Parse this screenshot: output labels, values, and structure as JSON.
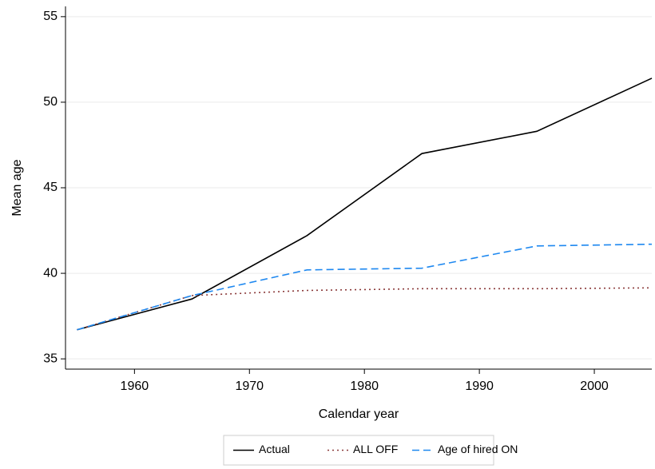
{
  "chart_data": {
    "type": "line",
    "x_label": "Calendar year",
    "y_label": "Mean age",
    "x": [
      1955,
      1965,
      1975,
      1985,
      1995,
      2005
    ],
    "series": [
      {
        "name": "Actual",
        "color": "#000000",
        "dash": "solid",
        "values": [
          36.7,
          38.5,
          42.2,
          47.0,
          48.3,
          51.4
        ]
      },
      {
        "name": "ALL OFF",
        "color": "#8b3a3a",
        "dash": "dotted",
        "values": [
          36.7,
          38.7,
          39.0,
          39.1,
          39.1,
          39.15
        ]
      },
      {
        "name": "Age of hired ON",
        "color": "#1e88f0",
        "dash": "dashed",
        "values": [
          36.7,
          38.7,
          40.2,
          40.3,
          41.6,
          41.7
        ]
      }
    ],
    "xlim": [
      1954,
      2005
    ],
    "xticks": [
      1960,
      1970,
      1980,
      1990,
      2000
    ],
    "ylim": [
      34.4,
      55.6
    ],
    "yticks": [
      35,
      40,
      45,
      50,
      55
    ],
    "grid": true,
    "legend": "bottom"
  }
}
